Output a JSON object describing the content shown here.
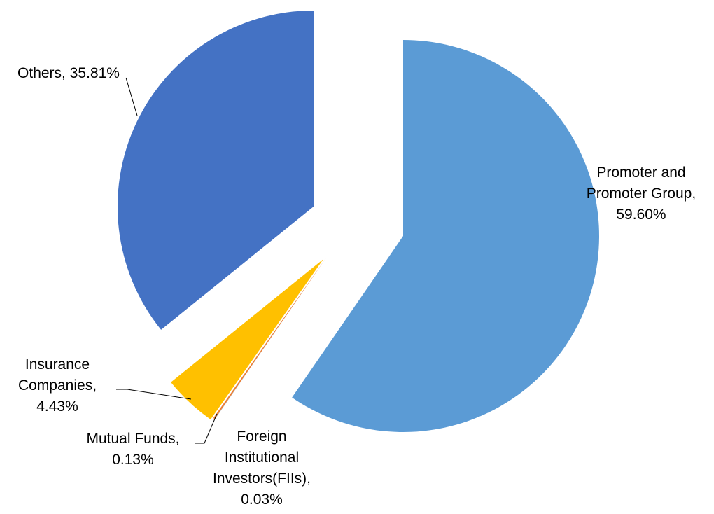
{
  "chart_data": {
    "type": "pie",
    "exploded": true,
    "slices": [
      {
        "name": "Promoter and Promoter Group",
        "value": 59.6,
        "label": "Promoter and Promoter Group, 59.60%",
        "label_lines": [
          "Promoter and",
          "Promoter Group,",
          "59.60%"
        ],
        "color": "#5B9BD5"
      },
      {
        "name": "Foreign Institutional Investors(FIIs)",
        "value": 0.03,
        "label": "Foreign Institutional Investors(FIIs), 0.03%",
        "label_lines": [
          "Foreign",
          "Institutional",
          "Investors(FIIs),",
          "0.03%"
        ],
        "color": "#A5A5A5"
      },
      {
        "name": "Mutual Funds",
        "value": 0.13,
        "label": "Mutual Funds, 0.13%",
        "label_lines": [
          "Mutual Funds,",
          "0.13%"
        ],
        "color": "#ED7D31"
      },
      {
        "name": "Insurance Companies",
        "value": 4.43,
        "label": "Insurance Companies, 4.43%",
        "label_lines": [
          "Insurance",
          "Companies,",
          "4.43%"
        ],
        "color": "#FFC000"
      },
      {
        "name": "Others",
        "value": 35.81,
        "label": "Others, 35.81%",
        "label_lines": [
          "Others, 35.81%"
        ],
        "color": "#4472C4"
      }
    ]
  }
}
